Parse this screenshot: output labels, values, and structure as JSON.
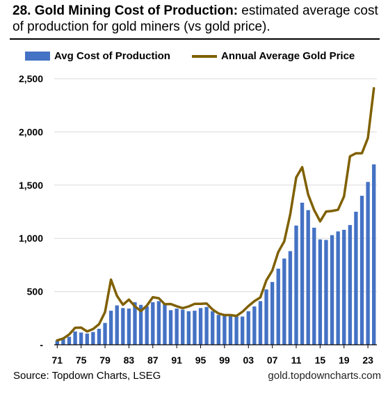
{
  "header": {
    "title_bold": "28. Gold Mining Cost of Production:",
    "title_rest": " estimated average cost of production for gold miners (vs gold price)."
  },
  "footer": {
    "source": "Source: Topdown Charts, LSEG",
    "site": "gold.topdowncharts.com"
  },
  "colors": {
    "bars": "#4472C4",
    "line": "#7F6000",
    "grid": "#D9D9D9"
  },
  "chart_data": {
    "type": "bar",
    "title": "",
    "xlabel": "",
    "ylabel": "",
    "ylim": [
      0,
      2500
    ],
    "grid": true,
    "legend_position": "top",
    "y_tick_labels": [
      "-",
      "500",
      "1,000",
      "1,500",
      "2,000",
      "2,500"
    ],
    "y_tick_values": [
      0,
      500,
      1000,
      1500,
      2000,
      2500
    ],
    "x_tick_labels": [
      "71",
      "75",
      "79",
      "83",
      "87",
      "91",
      "95",
      "99",
      "03",
      "07",
      "11",
      "15",
      "19",
      "23"
    ],
    "x_tick_years": [
      1971,
      1975,
      1979,
      1983,
      1987,
      1991,
      1995,
      1999,
      2003,
      2007,
      2011,
      2015,
      2019,
      2023
    ],
    "years": [
      1971,
      1972,
      1973,
      1974,
      1975,
      1976,
      1977,
      1978,
      1979,
      1980,
      1981,
      1982,
      1983,
      1984,
      1985,
      1986,
      1987,
      1988,
      1989,
      1990,
      1991,
      1992,
      1993,
      1994,
      1995,
      1996,
      1997,
      1998,
      1999,
      2000,
      2001,
      2002,
      2003,
      2004,
      2005,
      2006,
      2007,
      2008,
      2009,
      2010,
      2011,
      2012,
      2013,
      2014,
      2015,
      2016,
      2017,
      2018,
      2019,
      2020,
      2021,
      2022,
      2023,
      2024
    ],
    "series": [
      {
        "name": "Avg Cost of Production",
        "type": "bar",
        "values": [
          40,
          55,
          75,
          125,
          115,
          105,
          120,
          150,
          205,
          320,
          370,
          345,
          340,
          400,
          375,
          360,
          400,
          410,
          385,
          325,
          340,
          330,
          315,
          320,
          345,
          355,
          315,
          280,
          275,
          270,
          265,
          265,
          315,
          360,
          410,
          520,
          590,
          715,
          810,
          880,
          1120,
          1335,
          1265,
          1100,
          990,
          985,
          1030,
          1065,
          1080,
          1125,
          1250,
          1400,
          1530,
          1695
        ]
      },
      {
        "name": "Annual Average Gold Price",
        "type": "line",
        "values": [
          41,
          58,
          97,
          160,
          161,
          125,
          148,
          193,
          306,
          612,
          460,
          376,
          424,
          361,
          317,
          368,
          447,
          437,
          381,
          383,
          362,
          344,
          360,
          384,
          384,
          388,
          331,
          294,
          279,
          279,
          271,
          310,
          364,
          410,
          445,
          604,
          697,
          872,
          972,
          1225,
          1572,
          1669,
          1411,
          1266,
          1160,
          1251,
          1257,
          1268,
          1393,
          1770,
          1799,
          1800,
          1943,
          2410
        ]
      }
    ]
  }
}
